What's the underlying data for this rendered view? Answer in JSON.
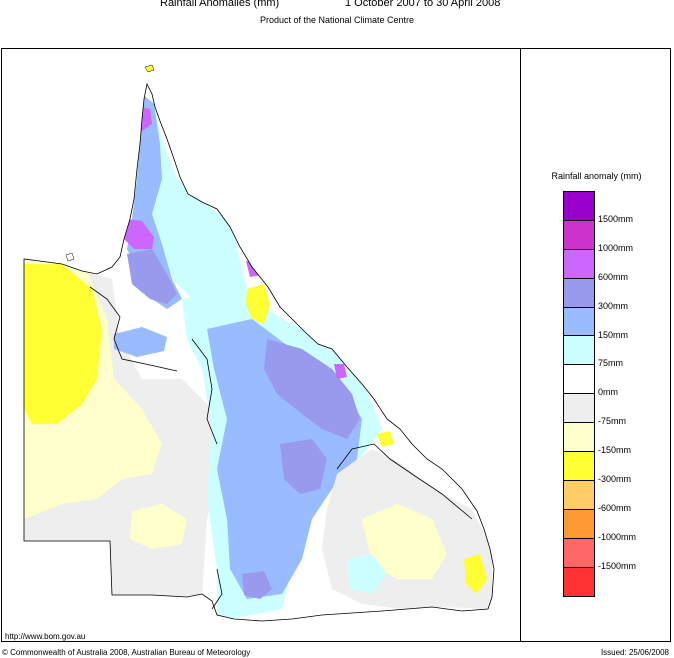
{
  "header": {
    "title": "Rainfall Anomalies (mm)",
    "period": "1 October 2007 to 30 April 2008",
    "subtitle": "Product of the National Climate Centre"
  },
  "legend": {
    "title": "Rainfall anomaly (mm)",
    "classes": [
      {
        "color": "#9900cc"
      },
      {
        "color": "#cc33cc"
      },
      {
        "color": "#cc66ff"
      },
      {
        "color": "#9999ee"
      },
      {
        "color": "#99bbff"
      },
      {
        "color": "#ccffff"
      },
      {
        "color": "#ffffff"
      },
      {
        "color": "#eeeeee"
      },
      {
        "color": "#ffffcc"
      },
      {
        "color": "#ffff33"
      },
      {
        "color": "#ffcc66"
      },
      {
        "color": "#ff9933"
      },
      {
        "color": "#ff6666"
      },
      {
        "color": "#ff3333"
      }
    ],
    "labels": [
      "1500mm",
      "1000mm",
      "600mm",
      "300mm",
      "150mm",
      "75mm",
      "0mm",
      "-75mm",
      "-150mm",
      "-300mm",
      "-600mm",
      "-1000mm",
      "-1500mm"
    ]
  },
  "map": {
    "region": "Queensland",
    "colors": {
      "outside": "#ffffff",
      "zero_to_75": "#ffffff",
      "minus75_to_0": "#eeeeee",
      "minus150_to_minus75": "#ffffcc",
      "minus300_to_minus150": "#ffff33",
      "minus600_to_minus300": "#ffcc66",
      "p75_to_150": "#ccffff",
      "p150_to_300": "#99bbff",
      "p300_to_600": "#9999ee",
      "p600_to_1000": "#cc66ff"
    }
  },
  "footer": {
    "url": "http://www.bom.gov.au",
    "copyright": "© Commonwealth of Australia 2008, Australian Bureau of Meteorology",
    "issued": "Issued: 25/06/2008"
  }
}
